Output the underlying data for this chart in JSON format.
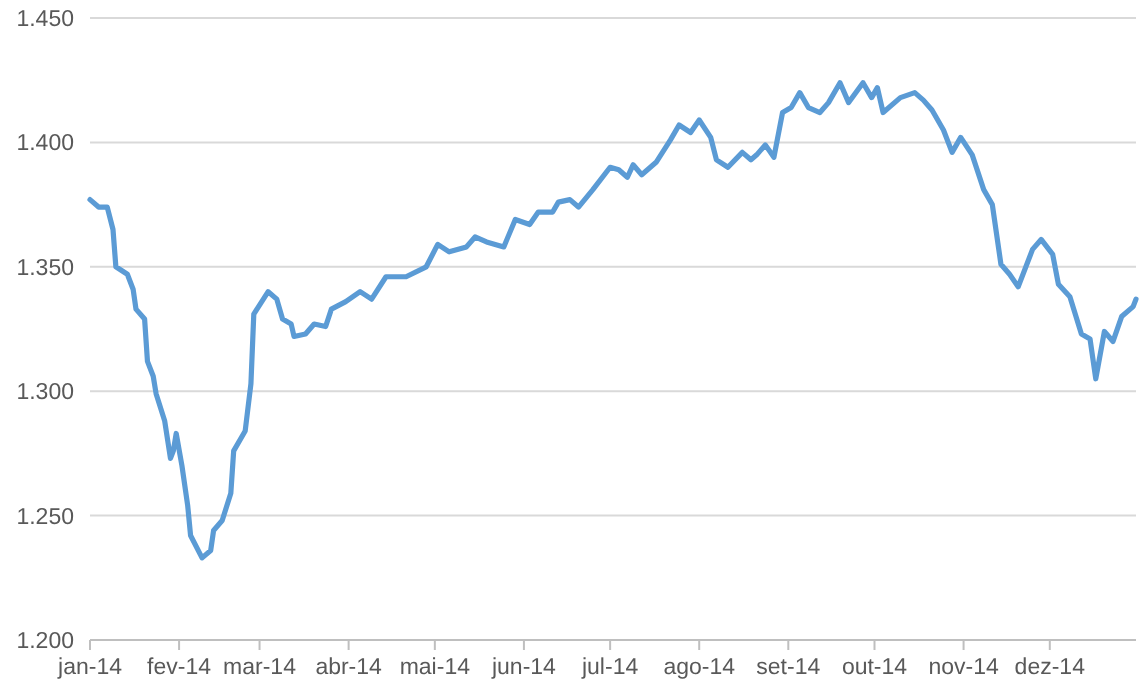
{
  "chart_data": {
    "type": "line",
    "x": [
      "2014-01-01",
      "2014-01-04",
      "2014-01-07",
      "2014-01-09",
      "2014-01-10",
      "2014-01-14",
      "2014-01-16",
      "2014-01-17",
      "2014-01-20",
      "2014-01-21",
      "2014-01-23",
      "2014-01-24",
      "2014-01-27",
      "2014-01-29",
      "2014-01-30",
      "2014-01-31",
      "2014-02-02",
      "2014-02-04",
      "2014-02-05",
      "2014-02-09",
      "2014-02-12",
      "2014-02-13",
      "2014-02-16",
      "2014-02-19",
      "2014-02-20",
      "2014-02-24",
      "2014-02-26",
      "2014-02-27",
      "2014-03-04",
      "2014-03-07",
      "2014-03-09",
      "2014-03-12",
      "2014-03-13",
      "2014-03-17",
      "2014-03-20",
      "2014-03-24",
      "2014-03-26",
      "2014-03-31",
      "2014-04-05",
      "2014-04-09",
      "2014-04-14",
      "2014-04-21",
      "2014-04-28",
      "2014-05-02",
      "2014-05-06",
      "2014-05-12",
      "2014-05-15",
      "2014-05-19",
      "2014-05-25",
      "2014-05-29",
      "2014-06-03",
      "2014-06-06",
      "2014-06-11",
      "2014-06-13",
      "2014-06-17",
      "2014-06-20",
      "2014-06-25",
      "2014-07-01",
      "2014-07-04",
      "2014-07-07",
      "2014-07-09",
      "2014-07-12",
      "2014-07-17",
      "2014-07-22",
      "2014-07-25",
      "2014-07-29",
      "2014-08-01",
      "2014-08-05",
      "2014-08-07",
      "2014-08-11",
      "2014-08-16",
      "2014-08-19",
      "2014-08-21",
      "2014-08-24",
      "2014-08-27",
      "2014-08-30",
      "2014-09-02",
      "2014-09-05",
      "2014-09-08",
      "2014-09-12",
      "2014-09-15",
      "2014-09-19",
      "2014-09-22",
      "2014-09-27",
      "2014-09-30",
      "2014-10-02",
      "2014-10-04",
      "2014-10-10",
      "2014-10-15",
      "2014-10-18",
      "2014-10-21",
      "2014-10-25",
      "2014-10-28",
      "2014-10-31",
      "2014-11-04",
      "2014-11-08",
      "2014-11-11",
      "2014-11-14",
      "2014-11-17",
      "2014-11-20",
      "2014-11-25",
      "2014-11-28",
      "2014-12-02",
      "2014-12-04",
      "2014-12-08",
      "2014-12-12",
      "2014-12-15",
      "2014-12-17",
      "2014-12-20",
      "2014-12-23",
      "2014-12-26",
      "2014-12-30",
      "2014-12-31"
    ],
    "series": [
      {
        "color": "#5b9bd5",
        "values": [
          1.377,
          1.374,
          1.374,
          1.365,
          1.35,
          1.347,
          1.341,
          1.333,
          1.329,
          1.312,
          1.306,
          1.299,
          1.288,
          1.273,
          1.276,
          1.283,
          1.27,
          1.254,
          1.242,
          1.233,
          1.236,
          1.244,
          1.248,
          1.259,
          1.276,
          1.284,
          1.303,
          1.331,
          1.34,
          1.337,
          1.329,
          1.327,
          1.322,
          1.323,
          1.327,
          1.326,
          1.333,
          1.336,
          1.34,
          1.337,
          1.346,
          1.346,
          1.35,
          1.359,
          1.356,
          1.358,
          1.362,
          1.36,
          1.358,
          1.369,
          1.367,
          1.372,
          1.372,
          1.376,
          1.377,
          1.374,
          1.381,
          1.39,
          1.389,
          1.386,
          1.391,
          1.387,
          1.392,
          1.401,
          1.407,
          1.404,
          1.409,
          1.402,
          1.393,
          1.39,
          1.396,
          1.393,
          1.395,
          1.399,
          1.394,
          1.412,
          1.414,
          1.42,
          1.414,
          1.412,
          1.416,
          1.424,
          1.416,
          1.424,
          1.418,
          1.422,
          1.412,
          1.418,
          1.42,
          1.417,
          1.413,
          1.405,
          1.396,
          1.402,
          1.395,
          1.381,
          1.375,
          1.351,
          1.347,
          1.342,
          1.357,
          1.361,
          1.355,
          1.343,
          1.338,
          1.323,
          1.321,
          1.305,
          1.324,
          1.32,
          1.33,
          1.334,
          1.337
        ]
      }
    ],
    "xlim": [
      "2014-01-01",
      "2014-12-31"
    ],
    "xticks": [
      {
        "value": "2014-01-01",
        "label": "jan-14"
      },
      {
        "value": "2014-02-01",
        "label": "fev-14"
      },
      {
        "value": "2014-03-01",
        "label": "mar-14"
      },
      {
        "value": "2014-04-01",
        "label": "abr-14"
      },
      {
        "value": "2014-05-01",
        "label": "mai-14"
      },
      {
        "value": "2014-06-01",
        "label": "jun-14"
      },
      {
        "value": "2014-07-01",
        "label": "jul-14"
      },
      {
        "value": "2014-08-01",
        "label": "ago-14"
      },
      {
        "value": "2014-09-01",
        "label": "set-14"
      },
      {
        "value": "2014-10-01",
        "label": "out-14"
      },
      {
        "value": "2014-11-01",
        "label": "nov-14"
      },
      {
        "value": "2014-12-01",
        "label": "dez-14"
      }
    ],
    "ylim": [
      1.2,
      1.45
    ],
    "yticks": [
      {
        "value": 1.2,
        "label": "1.200"
      },
      {
        "value": 1.25,
        "label": "1.250"
      },
      {
        "value": 1.3,
        "label": "1.300"
      },
      {
        "value": 1.35,
        "label": "1.350"
      },
      {
        "value": 1.4,
        "label": "1.400"
      },
      {
        "value": 1.45,
        "label": "1.450"
      }
    ],
    "grid": "y",
    "marker": "none",
    "line_style": "solid"
  }
}
